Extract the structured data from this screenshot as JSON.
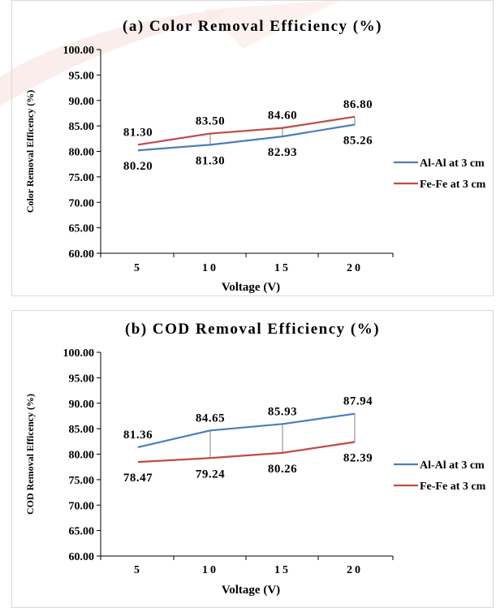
{
  "colors": {
    "series_a": "#4a7ebb",
    "series_b": "#be4b48",
    "axis": "#000000",
    "droplines": "#808080"
  },
  "chart_data": [
    {
      "type": "line",
      "title": "(a) Color Removal Efficiency (%)",
      "xlabel": "Voltage (V)",
      "ylabel": "Color Removal Efficency (%)",
      "categories": [
        "5",
        "10",
        "15",
        "20"
      ],
      "ylim": [
        60,
        100
      ],
      "yticks": [
        "60.00",
        "65.00",
        "70.00",
        "75.00",
        "80.00",
        "85.00",
        "90.00",
        "95.00",
        "100.00"
      ],
      "grid": false,
      "legend_position": "right",
      "series": [
        {
          "name": "Al-Al at 3 cm",
          "values": [
            80.2,
            81.3,
            82.93,
            85.26
          ],
          "labels": [
            "80.20",
            "81.30",
            "82.93",
            "85.26"
          ],
          "color": "#4a7ebb"
        },
        {
          "name": "Fe-Fe at 3 cm",
          "values": [
            81.3,
            83.5,
            84.6,
            86.8
          ],
          "labels": [
            "81.30",
            "83.50",
            "84.60",
            "86.80"
          ],
          "color": "#be4b48"
        }
      ]
    },
    {
      "type": "line",
      "title": "(b) COD Removal Efficiency (%)",
      "xlabel": "Voltage (V)",
      "ylabel": "COD Removal Efficency (%)",
      "categories": [
        "5",
        "10",
        "15",
        "20"
      ],
      "ylim": [
        60,
        100
      ],
      "yticks": [
        "60.00",
        "65.00",
        "70.00",
        "75.00",
        "80.00",
        "85.00",
        "90.00",
        "95.00",
        "100.00"
      ],
      "grid": false,
      "legend_position": "right",
      "series": [
        {
          "name": "Al-Al at 3 cm",
          "values": [
            81.36,
            84.65,
            85.93,
            87.94
          ],
          "labels": [
            "81.36",
            "84.65",
            "85.93",
            "87.94"
          ],
          "color": "#4a7ebb"
        },
        {
          "name": "Fe-Fe at 3 cm",
          "values": [
            78.47,
            79.24,
            80.26,
            82.39
          ],
          "labels": [
            "78.47",
            "79.24",
            "80.26",
            "82.39"
          ],
          "color": "#be4b48"
        }
      ]
    }
  ]
}
